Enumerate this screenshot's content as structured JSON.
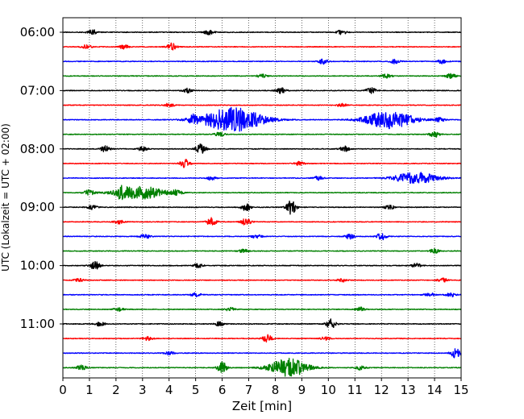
{
  "chart_data": {
    "type": "line",
    "xlabel": "Zeit  [min]",
    "ylabel": "UTC (Lokalzeit = UTC + 02:00)",
    "xlim": [
      0,
      15
    ],
    "x_ticks": [
      "0",
      "1",
      "2",
      "3",
      "4",
      "5",
      "6",
      "7",
      "8",
      "9",
      "10",
      "11",
      "12",
      "13",
      "14",
      "15"
    ],
    "y_tick_labels": [
      "06:00",
      "07:00",
      "08:00",
      "09:00",
      "10:00",
      "11:00"
    ],
    "y_tick_traces": [
      0,
      4,
      8,
      12,
      16,
      20
    ],
    "grid": "vertical dotted lines at each minute",
    "trace_colors": [
      "#000000",
      "#ff0000",
      "#0000ff",
      "#008000"
    ],
    "num_traces": 24,
    "trace_start_times": [
      "06:00",
      "06:15",
      "06:30",
      "06:45",
      "07:00",
      "07:15",
      "07:30",
      "07:45",
      "08:00",
      "08:15",
      "08:30",
      "08:45",
      "09:00",
      "09:15",
      "09:30",
      "09:45",
      "10:00",
      "10:15",
      "10:30",
      "10:45",
      "11:00",
      "11:15",
      "11:30",
      "11:45"
    ],
    "events": [
      {
        "trace": 0,
        "minute": 1.1,
        "amp": 0.4
      },
      {
        "trace": 0,
        "minute": 5.5,
        "amp": 0.35
      },
      {
        "trace": 0,
        "minute": 10.5,
        "amp": 0.3
      },
      {
        "trace": 1,
        "minute": 4.1,
        "amp": 0.5
      },
      {
        "trace": 1,
        "minute": 2.3,
        "amp": 0.3
      },
      {
        "trace": 1,
        "minute": 0.9,
        "amp": 0.3
      },
      {
        "trace": 2,
        "minute": 9.8,
        "amp": 0.35
      },
      {
        "trace": 2,
        "minute": 12.5,
        "amp": 0.3
      },
      {
        "trace": 2,
        "minute": 14.3,
        "amp": 0.3
      },
      {
        "trace": 3,
        "minute": 12.2,
        "amp": 0.3
      },
      {
        "trace": 3,
        "minute": 14.6,
        "amp": 0.35
      },
      {
        "trace": 3,
        "minute": 7.5,
        "amp": 0.25
      },
      {
        "trace": 4,
        "minute": 8.2,
        "amp": 0.4
      },
      {
        "trace": 4,
        "minute": 11.6,
        "amp": 0.4
      },
      {
        "trace": 4,
        "minute": 4.7,
        "amp": 0.3
      },
      {
        "trace": 5,
        "minute": 4.0,
        "amp": 0.25
      },
      {
        "trace": 5,
        "minute": 10.5,
        "amp": 0.25
      },
      {
        "trace": 6,
        "minute": 6.4,
        "amp": 1.7,
        "width": 1.1
      },
      {
        "trace": 6,
        "minute": 12.3,
        "amp": 1.2,
        "width": 0.9
      },
      {
        "trace": 6,
        "minute": 4.9,
        "amp": 0.5
      },
      {
        "trace": 6,
        "minute": 14.2,
        "amp": 0.3
      },
      {
        "trace": 7,
        "minute": 14.0,
        "amp": 0.4
      },
      {
        "trace": 7,
        "minute": 5.9,
        "amp": 0.3
      },
      {
        "trace": 8,
        "minute": 5.2,
        "amp": 0.7
      },
      {
        "trace": 8,
        "minute": 1.6,
        "amp": 0.45
      },
      {
        "trace": 8,
        "minute": 3.0,
        "amp": 0.3
      },
      {
        "trace": 8,
        "minute": 10.6,
        "amp": 0.4
      },
      {
        "trace": 9,
        "minute": 4.6,
        "amp": 0.6
      },
      {
        "trace": 9,
        "minute": 8.9,
        "amp": 0.25
      },
      {
        "trace": 10,
        "minute": 13.3,
        "amp": 0.8,
        "width": 0.8
      },
      {
        "trace": 10,
        "minute": 5.6,
        "amp": 0.3
      },
      {
        "trace": 10,
        "minute": 9.6,
        "amp": 0.3
      },
      {
        "trace": 11,
        "minute": 1.0,
        "amp": 0.4
      },
      {
        "trace": 11,
        "minute": 2.2,
        "amp": 0.6
      },
      {
        "trace": 11,
        "minute": 2.9,
        "amp": 0.9,
        "width": 0.9
      },
      {
        "trace": 11,
        "minute": 4.3,
        "amp": 0.35
      },
      {
        "trace": 12,
        "minute": 8.6,
        "amp": 1.0
      },
      {
        "trace": 12,
        "minute": 6.9,
        "amp": 0.5
      },
      {
        "trace": 12,
        "minute": 1.1,
        "amp": 0.3
      },
      {
        "trace": 12,
        "minute": 12.3,
        "amp": 0.3
      },
      {
        "trace": 13,
        "minute": 5.6,
        "amp": 0.55
      },
      {
        "trace": 13,
        "minute": 6.9,
        "amp": 0.5
      },
      {
        "trace": 13,
        "minute": 2.1,
        "amp": 0.3
      },
      {
        "trace": 14,
        "minute": 3.1,
        "amp": 0.3
      },
      {
        "trace": 14,
        "minute": 10.8,
        "amp": 0.35
      },
      {
        "trace": 14,
        "minute": 12.0,
        "amp": 0.5
      },
      {
        "trace": 14,
        "minute": 7.3,
        "amp": 0.25
      },
      {
        "trace": 15,
        "minute": 6.8,
        "amp": 0.25
      },
      {
        "trace": 15,
        "minute": 14.0,
        "amp": 0.3
      },
      {
        "trace": 16,
        "minute": 1.2,
        "amp": 0.6
      },
      {
        "trace": 16,
        "minute": 5.1,
        "amp": 0.3
      },
      {
        "trace": 16,
        "minute": 13.3,
        "amp": 0.3
      },
      {
        "trace": 17,
        "minute": 0.6,
        "amp": 0.25
      },
      {
        "trace": 17,
        "minute": 14.3,
        "amp": 0.3
      },
      {
        "trace": 17,
        "minute": 10.5,
        "amp": 0.25
      },
      {
        "trace": 18,
        "minute": 13.8,
        "amp": 0.3
      },
      {
        "trace": 18,
        "minute": 14.6,
        "amp": 0.3
      },
      {
        "trace": 18,
        "minute": 5.0,
        "amp": 0.25
      },
      {
        "trace": 19,
        "minute": 6.3,
        "amp": 0.3
      },
      {
        "trace": 19,
        "minute": 11.2,
        "amp": 0.3
      },
      {
        "trace": 19,
        "minute": 2.1,
        "amp": 0.25
      },
      {
        "trace": 20,
        "minute": 10.1,
        "amp": 0.7
      },
      {
        "trace": 20,
        "minute": 5.9,
        "amp": 0.3
      },
      {
        "trace": 20,
        "minute": 1.4,
        "amp": 0.3
      },
      {
        "trace": 21,
        "minute": 7.7,
        "amp": 0.5
      },
      {
        "trace": 21,
        "minute": 3.2,
        "amp": 0.25
      },
      {
        "trace": 21,
        "minute": 9.9,
        "amp": 0.25
      },
      {
        "trace": 22,
        "minute": 14.8,
        "amp": 0.7
      },
      {
        "trace": 22,
        "minute": 4.0,
        "amp": 0.25
      },
      {
        "trace": 23,
        "minute": 6.0,
        "amp": 0.8
      },
      {
        "trace": 23,
        "minute": 8.5,
        "amp": 1.3,
        "width": 0.7
      },
      {
        "trace": 23,
        "minute": 0.7,
        "amp": 0.35
      },
      {
        "trace": 23,
        "minute": 11.2,
        "amp": 0.3
      }
    ]
  }
}
